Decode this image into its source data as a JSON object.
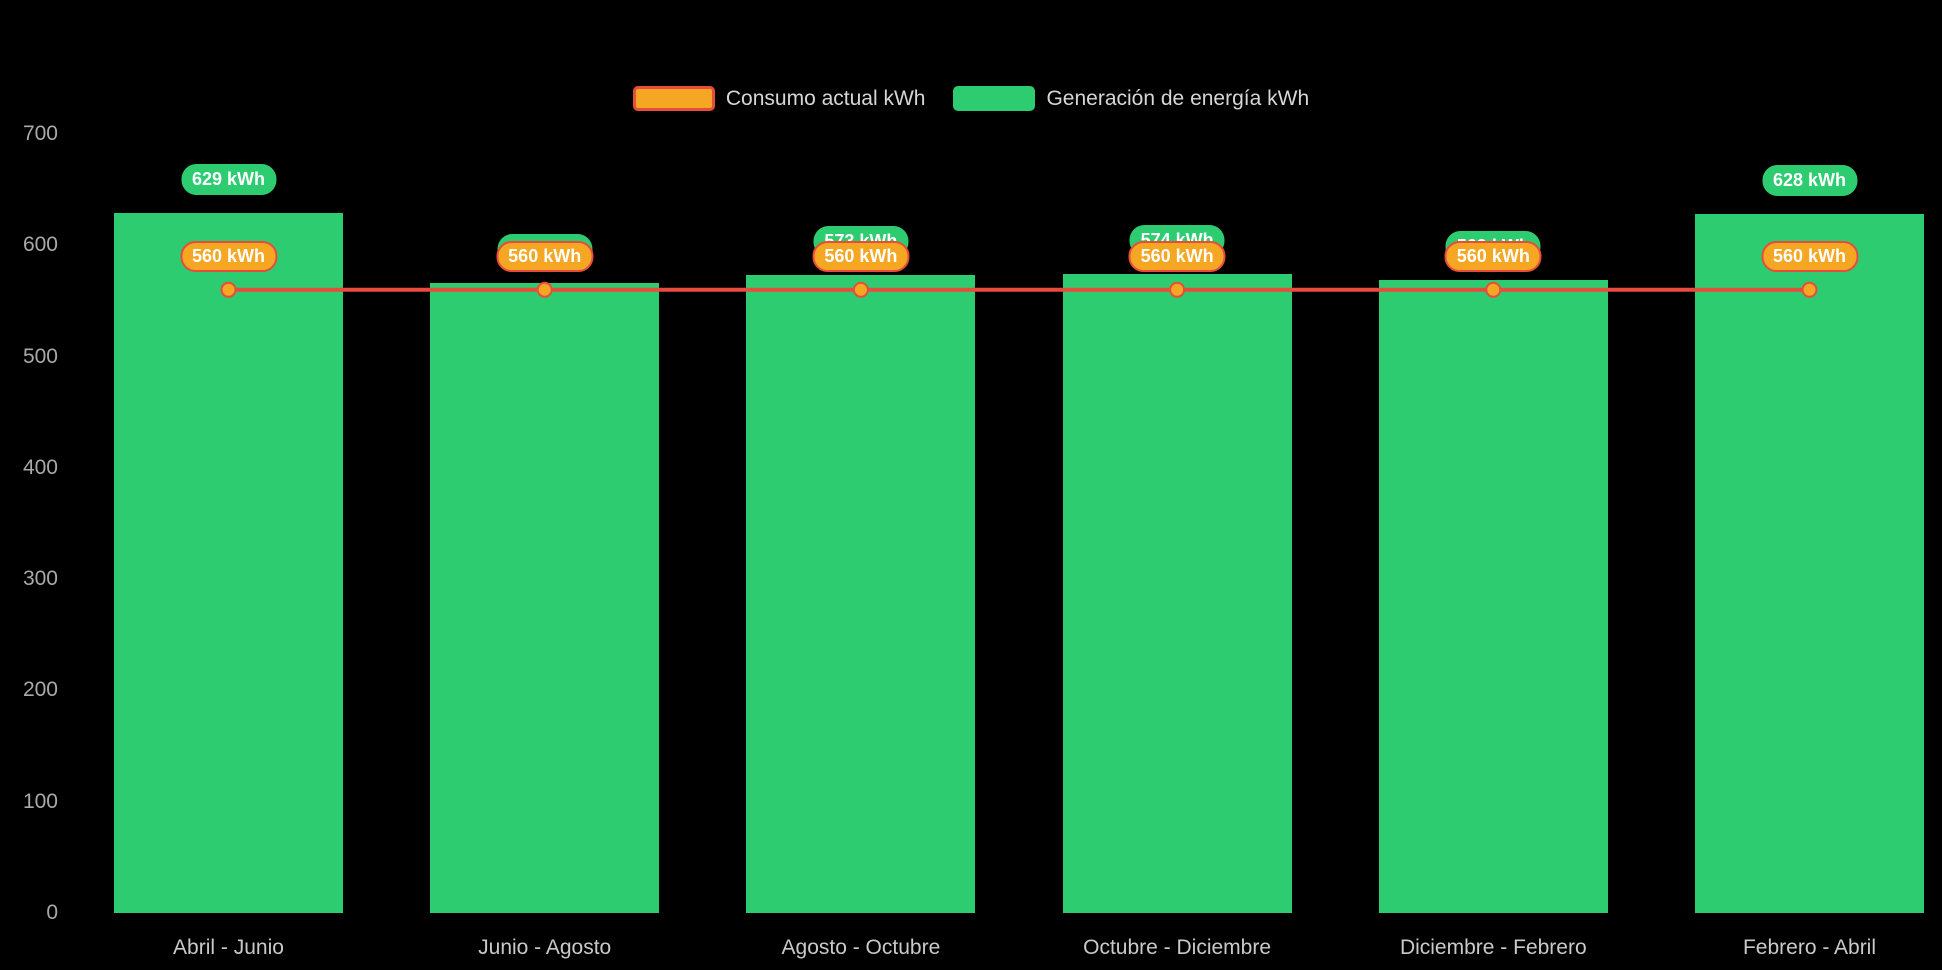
{
  "page": {
    "background": "#000000"
  },
  "legend": {
    "items": [
      {
        "label": "Consumo actual kWh",
        "fill": "#f5a623",
        "border": "#e74c3c"
      },
      {
        "label": "Generación de energía kWh",
        "fill": "#2ecc71",
        "border": "#2ecc71"
      }
    ]
  },
  "chart_data": {
    "type": "bar",
    "title": "",
    "categories": [
      "Abril - Junio",
      "Junio - Agosto",
      "Agosto - Octubre",
      "Octubre - Diciembre",
      "Diciembre - Febrero",
      "Febrero - Abril"
    ],
    "series": [
      {
        "name": "Generación de energía kWh",
        "type": "bar",
        "color": "#2ecc71",
        "values": [
          629,
          566,
          573,
          574,
          569,
          628
        ],
        "labels": [
          "629 kWh",
          "566 kWh",
          "573 kWh",
          "574 kWh",
          "569 kWh",
          "628 kWh"
        ],
        "label_bg": "#2ecc71",
        "label_text_color": "#ffffff"
      },
      {
        "name": "Consumo actual kWh",
        "type": "line",
        "color": "#e74c3c",
        "point_color": "#f5a623",
        "values": [
          560,
          560,
          560,
          560,
          560,
          560
        ],
        "labels": [
          "560 kWh",
          "560 kWh",
          "560 kWh",
          "560 kWh",
          "560 kWh",
          "560 kWh"
        ],
        "label_bg": "#f5a623",
        "label_border": "#e74c3c",
        "label_text_color": "#ffffff"
      }
    ],
    "ylim": [
      0,
      700
    ],
    "yticks": [
      "0",
      "100",
      "200",
      "300",
      "400",
      "500",
      "600",
      "700"
    ],
    "grid": false,
    "legend_position": "top"
  }
}
